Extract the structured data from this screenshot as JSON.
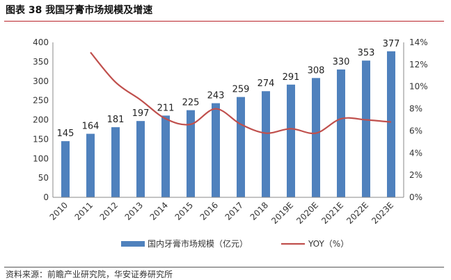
{
  "figure_title": "图表 38  我国牙膏市场规模及增速",
  "source_note": "资料来源：前瞻产业研究院，华安证券研究所",
  "colors": {
    "bar": "#4f81bd",
    "line": "#c0504d",
    "title_rule": "#b8232a"
  },
  "chart_data": {
    "type": "bar",
    "categories": [
      "2010",
      "2011",
      "2012",
      "2013",
      "2014",
      "2015",
      "2016",
      "2017",
      "2018",
      "2019E",
      "2020E",
      "2021E",
      "2022E",
      "2023E"
    ],
    "series": [
      {
        "name": "国内牙膏市场规模（亿元）",
        "type": "bar",
        "axis": "left",
        "values": [
          145,
          164,
          181,
          197,
          211,
          225,
          243,
          259,
          274,
          291,
          308,
          330,
          353,
          377
        ]
      },
      {
        "name": "YOY（%）",
        "type": "line",
        "axis": "right",
        "values": [
          null,
          13.1,
          10.4,
          8.8,
          7.1,
          6.6,
          8.0,
          6.6,
          5.8,
          6.2,
          5.8,
          7.1,
          7.0,
          6.8
        ]
      }
    ],
    "left_axis": {
      "ylim": [
        0,
        400
      ],
      "ticks": [
        "0",
        "50",
        "100",
        "150",
        "200",
        "250",
        "300",
        "350",
        "400"
      ]
    },
    "right_axis": {
      "ylim": [
        0,
        14
      ],
      "ticks": [
        "0%",
        "2%",
        "4%",
        "6%",
        "8%",
        "10%",
        "12%",
        "14%"
      ]
    },
    "grid": false,
    "legend_position": "bottom"
  }
}
